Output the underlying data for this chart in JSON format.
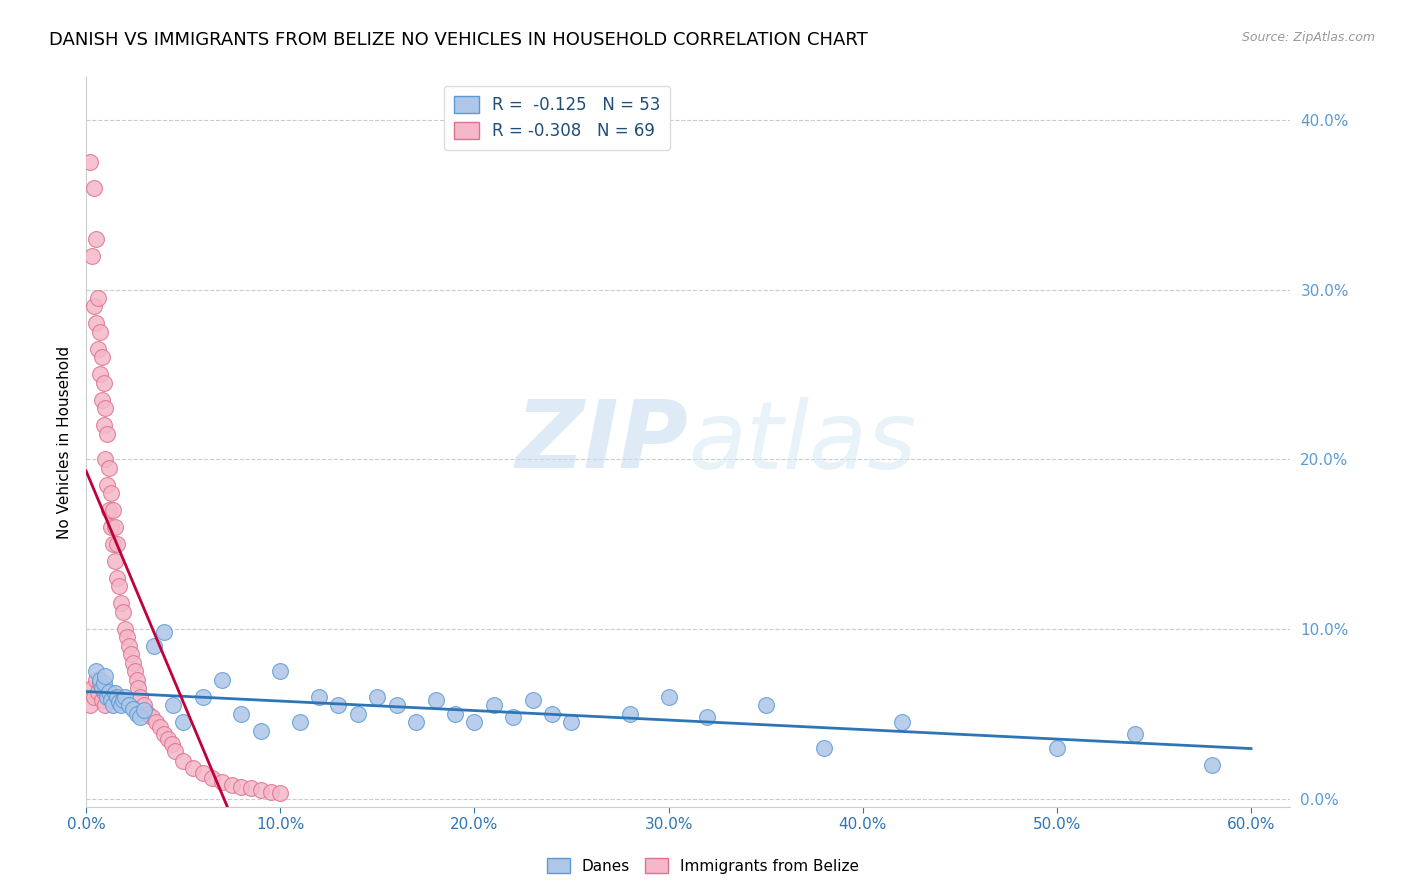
{
  "title": "DANISH VS IMMIGRANTS FROM BELIZE NO VEHICLES IN HOUSEHOLD CORRELATION CHART",
  "source": "Source: ZipAtlas.com",
  "ylabel": "No Vehicles in Household",
  "xlim": [
    0.0,
    0.62
  ],
  "ylim": [
    -0.005,
    0.425
  ],
  "danes_color": "#aec6e8",
  "danes_edge_color": "#5b9bd5",
  "belize_color": "#f4b8c8",
  "belize_edge_color": "#e07090",
  "danes_line_color": "#2e75b6",
  "belize_line_color": "#c0003c",
  "danes_R": -0.125,
  "danes_N": 53,
  "belize_R": -0.308,
  "belize_N": 69,
  "legend_label_danes": "Danes",
  "legend_label_belize": "Immigrants from Belize",
  "danes_x": [
    0.005,
    0.007,
    0.008,
    0.009,
    0.01,
    0.011,
    0.012,
    0.013,
    0.014,
    0.015,
    0.016,
    0.017,
    0.018,
    0.019,
    0.02,
    0.022,
    0.024,
    0.026,
    0.028,
    0.03,
    0.035,
    0.04,
    0.045,
    0.05,
    0.06,
    0.07,
    0.08,
    0.09,
    0.1,
    0.11,
    0.12,
    0.13,
    0.14,
    0.15,
    0.16,
    0.17,
    0.18,
    0.19,
    0.2,
    0.21,
    0.22,
    0.23,
    0.24,
    0.25,
    0.28,
    0.3,
    0.32,
    0.35,
    0.38,
    0.42,
    0.5,
    0.54,
    0.58
  ],
  "danes_y": [
    0.075,
    0.07,
    0.065,
    0.068,
    0.072,
    0.06,
    0.063,
    0.058,
    0.055,
    0.062,
    0.06,
    0.057,
    0.055,
    0.058,
    0.06,
    0.055,
    0.053,
    0.05,
    0.048,
    0.052,
    0.09,
    0.098,
    0.055,
    0.045,
    0.06,
    0.07,
    0.05,
    0.04,
    0.075,
    0.045,
    0.06,
    0.055,
    0.05,
    0.06,
    0.055,
    0.045,
    0.058,
    0.05,
    0.045,
    0.055,
    0.048,
    0.058,
    0.05,
    0.045,
    0.05,
    0.06,
    0.048,
    0.055,
    0.03,
    0.045,
    0.03,
    0.038,
    0.02
  ],
  "belize_x": [
    0.002,
    0.003,
    0.004,
    0.004,
    0.005,
    0.005,
    0.006,
    0.006,
    0.007,
    0.007,
    0.008,
    0.008,
    0.009,
    0.009,
    0.01,
    0.01,
    0.011,
    0.011,
    0.012,
    0.012,
    0.013,
    0.013,
    0.014,
    0.014,
    0.015,
    0.015,
    0.016,
    0.016,
    0.017,
    0.018,
    0.019,
    0.02,
    0.021,
    0.022,
    0.023,
    0.024,
    0.025,
    0.026,
    0.027,
    0.028,
    0.03,
    0.032,
    0.034,
    0.036,
    0.038,
    0.04,
    0.042,
    0.044,
    0.046,
    0.05,
    0.055,
    0.06,
    0.065,
    0.07,
    0.075,
    0.08,
    0.085,
    0.09,
    0.095,
    0.1,
    0.002,
    0.003,
    0.004,
    0.005,
    0.006,
    0.007,
    0.008,
    0.009,
    0.01
  ],
  "belize_y": [
    0.375,
    0.32,
    0.29,
    0.36,
    0.28,
    0.33,
    0.265,
    0.295,
    0.25,
    0.275,
    0.235,
    0.26,
    0.22,
    0.245,
    0.2,
    0.23,
    0.185,
    0.215,
    0.17,
    0.195,
    0.16,
    0.18,
    0.15,
    0.17,
    0.14,
    0.16,
    0.13,
    0.15,
    0.125,
    0.115,
    0.11,
    0.1,
    0.095,
    0.09,
    0.085,
    0.08,
    0.075,
    0.07,
    0.065,
    0.06,
    0.055,
    0.05,
    0.048,
    0.045,
    0.042,
    0.038,
    0.035,
    0.032,
    0.028,
    0.022,
    0.018,
    0.015,
    0.012,
    0.01,
    0.008,
    0.007,
    0.006,
    0.005,
    0.004,
    0.003,
    0.055,
    0.065,
    0.06,
    0.07,
    0.063,
    0.068,
    0.058,
    0.063,
    0.055
  ],
  "watermark_zip": "ZIP",
  "watermark_atlas": "atlas",
  "background_color": "#ffffff",
  "grid_color": "#cccccc",
  "right_axis_color": "#5b9bd5",
  "title_fontsize": 13,
  "axis_label_fontsize": 11,
  "tick_fontsize": 11,
  "legend_text_color": "#1f4e79",
  "legend_value_color": "#1f4e79"
}
